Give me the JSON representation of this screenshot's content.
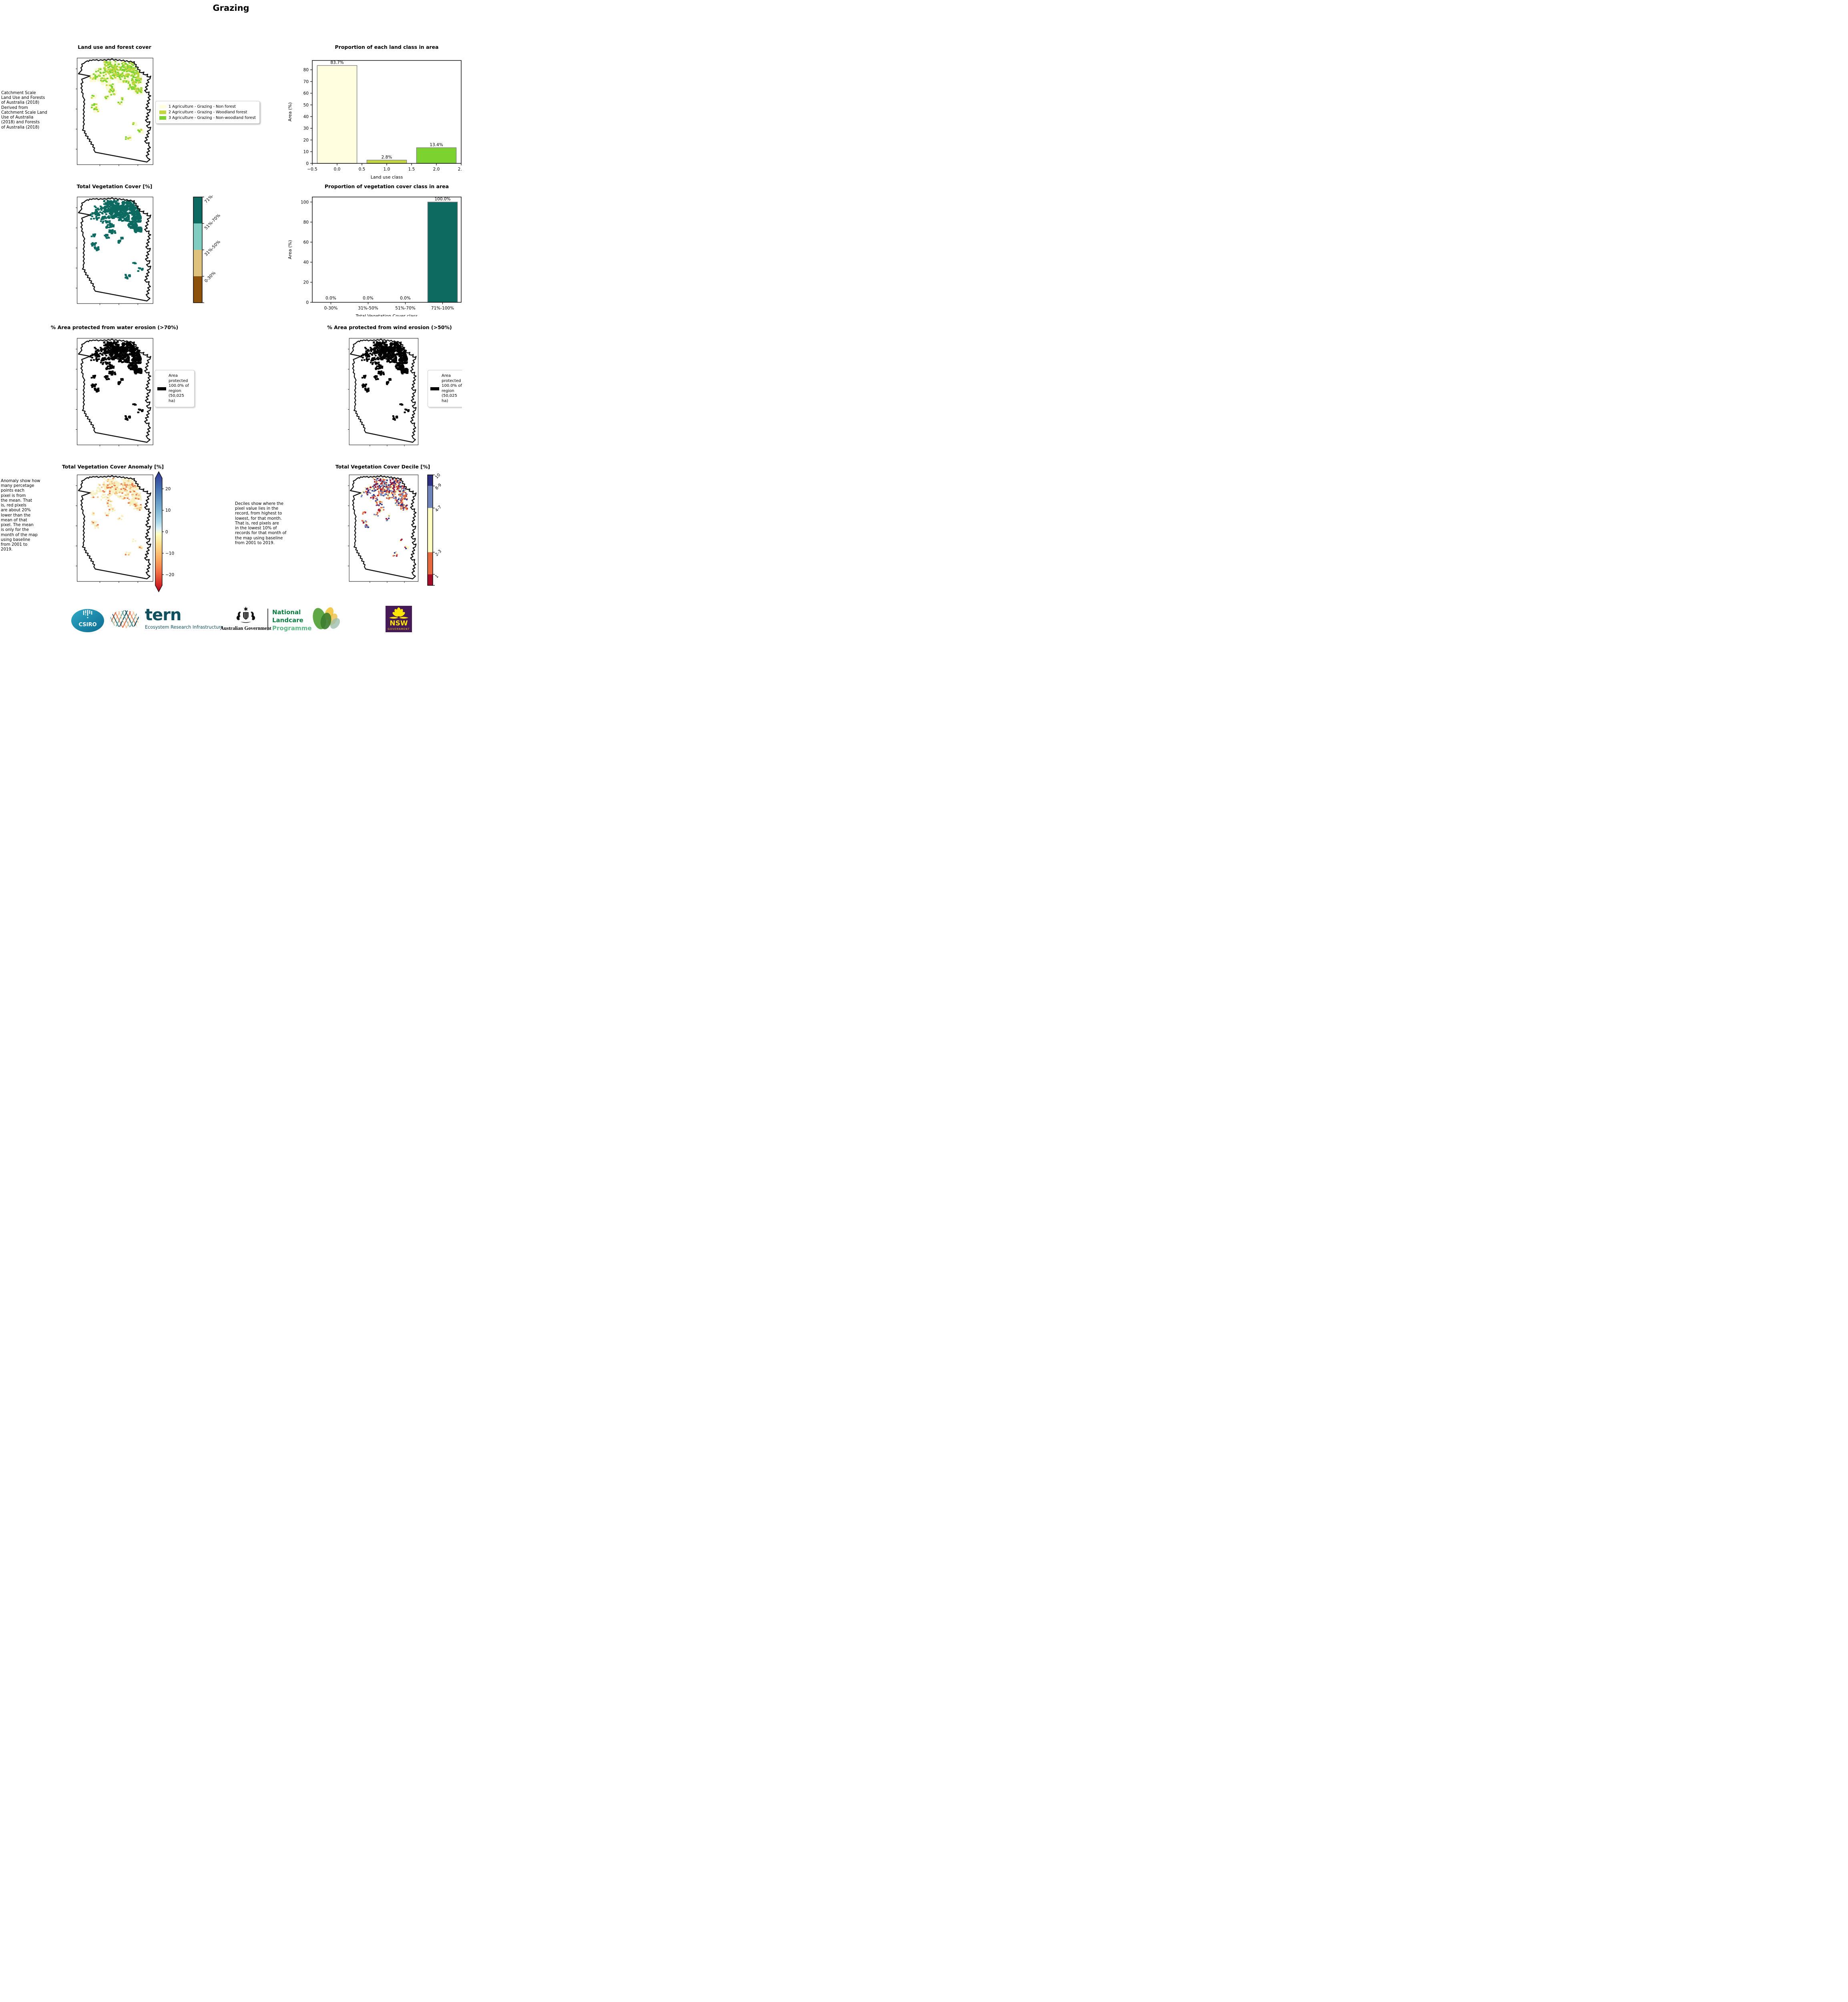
{
  "page_title": "Grazing",
  "panels": {
    "land_use": {
      "title": "Land use and forest cover",
      "side_note": " Catchment Scale\nLand Use and Forests\nof Australia (2018)\nDerived from\nCatchment Scale Land\nUse of Australia\n(2018) and Forests\nof Australia (2018)",
      "legend": [
        {
          "label": "1 Agriculture - Grazing - Non forest",
          "color": "#ffffe0"
        },
        {
          "label": "2 Agriculture - Grazing - Woodland forest",
          "color": "#c3d73f"
        },
        {
          "label": "3 Agriculture - Grazing - Non-woodland forest",
          "color": "#7cd22f"
        }
      ]
    },
    "veg_cover": {
      "title": "Total Vegetation Cover [%]",
      "colorbar": [
        {
          "label": "71%-100%",
          "color": "#0c6a60"
        },
        {
          "label": "51%-70%",
          "color": "#80cdc1"
        },
        {
          "label": "31%-50%",
          "color": "#dfc27d"
        },
        {
          "label": "0-30%",
          "color": "#8c510a"
        }
      ]
    },
    "water_erosion": {
      "title": "% Area protected from water erosion (>70%)",
      "legend_label": "Area protected 100.0% of region (50,025 ha)"
    },
    "wind_erosion": {
      "title": "% Area protected from wind erosion (>50%)",
      "legend_label": "Area protected 100.0% of region (50,025 ha)"
    },
    "anomaly": {
      "title": "Total Vegetation Cover Anomaly [%]",
      "side_note": "Anomaly show how\nmany percetage\npoints each\npixel is from\nthe mean. That\nis, red pixels\nare about 20%\nlower than the\nmean of that\npixel. The mean\nis only for the\nmonth of the map\nusing baseline\nfrom 2001 to\n2019.",
      "colorbar_ticks": [
        "20",
        "10",
        "0",
        "−10",
        "−20"
      ],
      "colorbar_tick_values": [
        20,
        10,
        0,
        -10,
        -20
      ],
      "colorbar_range": [
        -25,
        25
      ]
    },
    "decile": {
      "title": "Total Vegetation Cover Decile [%]",
      "side_note": "Deciles show where the\npixel value lies in the\nrecord, from highest to\nlowest, for that month.\nThat is, red pixels are\nin the lowest 10% of\nrecords for that month of\nthe map using baseline\nfrom 2001 to 2019.",
      "colorbar": [
        {
          "label": "10",
          "color": "#2d2f83",
          "fraction": 0.1
        },
        {
          "label": "8-9",
          "color": "#6e84bb",
          "fraction": 0.2
        },
        {
          "label": "4-7",
          "color": "#fffdc0",
          "fraction": 0.4
        },
        {
          "label": "2-3",
          "color": "#e5683e",
          "fraction": 0.2
        },
        {
          "label": "1",
          "color": "#a60b2a",
          "fraction": 0.1
        }
      ]
    }
  },
  "chart_data": [
    {
      "type": "bar",
      "title": "Proportion of each land class in area",
      "xlabel": "Land use class",
      "ylabel": "Area (%)",
      "x": [
        0,
        1,
        2
      ],
      "values": [
        83.7,
        2.8,
        13.4
      ],
      "bar_labels": [
        "83.7%",
        "2.8%",
        "13.4%"
      ],
      "bar_colors": [
        "#ffffe0",
        "#c3d73f",
        "#7cd22f"
      ],
      "bar_edge_color": "#7f7f7f",
      "xlim": [
        -0.5,
        2.5
      ],
      "ylim": [
        0,
        88
      ],
      "x_tick_values": [
        -0.5,
        0,
        0.5,
        1,
        1.5,
        2,
        2.5
      ],
      "x_tick_labels": [
        "−0.5",
        "0.0",
        "0.5",
        "1.0",
        "1.5",
        "2.0",
        "2.5"
      ],
      "yticks": [
        "0",
        "10",
        "20",
        "30",
        "40",
        "50",
        "60",
        "70",
        "80"
      ],
      "grid": false,
      "legend_position": "none"
    },
    {
      "type": "bar",
      "title": "Proportion of vegetation cover class in area",
      "xlabel": "Total Vegetation Cover class",
      "ylabel": "Area (%)",
      "categories": [
        "0-30%",
        "31%-50%",
        "51%-70%",
        "71%-100%"
      ],
      "values": [
        0.0,
        0.0,
        0.0,
        100.0
      ],
      "bar_labels": [
        "0.0%",
        "0.0%",
        "0.0%",
        "100.0%"
      ],
      "bar_colors": [
        "#0c6a60",
        "#0c6a60",
        "#0c6a60",
        "#0c6a60"
      ],
      "bar_edge_color": "#7f7f7f",
      "ylim": [
        0,
        105
      ],
      "yticks": [
        "0",
        "20",
        "40",
        "60",
        "80",
        "100"
      ],
      "grid": false,
      "legend_position": "none"
    }
  ],
  "map_colors": {
    "boundary": "#111111",
    "land_use_base": "#fbf9d4",
    "land_use_green": "#7cd22f",
    "land_use_yellowgreen": "#c3d73f",
    "veg_cover": "#0c6a60",
    "erosion": "#000000",
    "anomaly_pale": "#f7efbe",
    "anomaly_orange": "#f4c07e",
    "anomaly_red": "#e8784a",
    "decile_palette": [
      "#2d2f83",
      "#6e84bb",
      "#fffdc0",
      "#e5683e",
      "#a60b2a"
    ]
  },
  "footer": {
    "csiro": "CSIRO",
    "tern": "tern",
    "tern_sub": "Ecosystem Research Infrastructure",
    "aus_gov": "Australian Government",
    "nlp_line1": "National",
    "nlp_line2": "Landcare",
    "nlp_line3": "Programme",
    "nsw": "NSW",
    "nsw_sub": "GOVERNMENT"
  }
}
